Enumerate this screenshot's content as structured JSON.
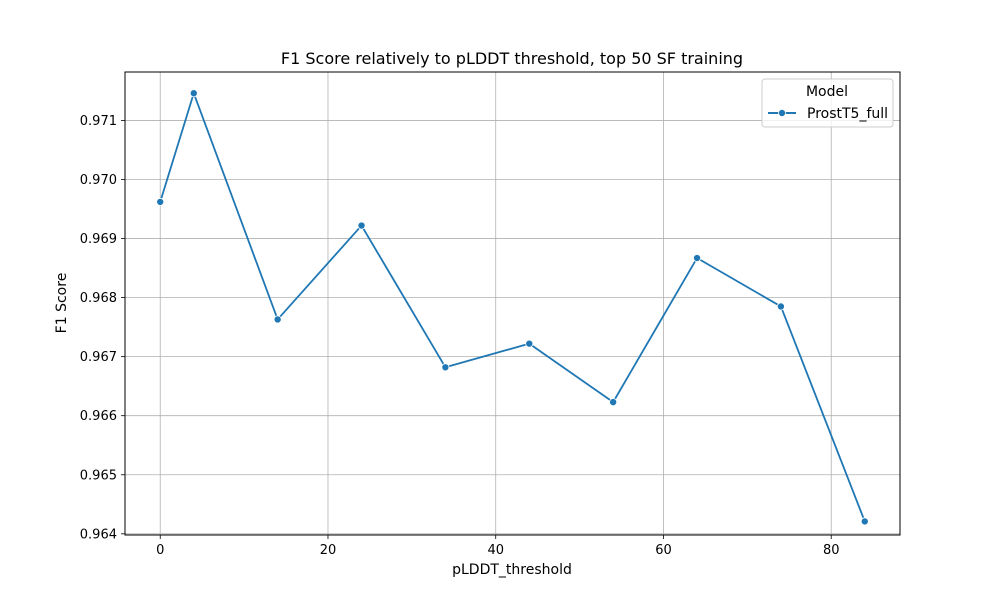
{
  "chart_data": {
    "type": "line",
    "title": "F1 Score relatively to pLDDT threshold, top 50 SF training",
    "xlabel": "pLDDT_threshold",
    "ylabel": "F1 Score",
    "xlim": [
      -4.2,
      88.2
    ],
    "ylim": [
      0.96398,
      0.97182
    ],
    "xticks": [
      0,
      20,
      40,
      60,
      80
    ],
    "xtick_labels": [
      "0",
      "20",
      "40",
      "60",
      "80"
    ],
    "yticks": [
      0.964,
      0.965,
      0.966,
      0.967,
      0.968,
      0.969,
      0.97,
      0.971
    ],
    "ytick_labels": [
      "0.964",
      "0.965",
      "0.966",
      "0.967",
      "0.968",
      "0.969",
      "0.970",
      "0.971"
    ],
    "grid": true,
    "legend": {
      "title": "Model",
      "placement": "top-right",
      "entries": [
        "ProstT5_full"
      ]
    },
    "series": [
      {
        "name": "ProstT5_full",
        "color": "#1f77b4",
        "marker": "circle",
        "x": [
          0,
          4,
          14,
          24,
          34,
          44,
          54,
          64,
          74,
          84
        ],
        "y": [
          0.96962,
          0.97146,
          0.96763,
          0.96922,
          0.96682,
          0.96722,
          0.96623,
          0.96867,
          0.96785,
          0.96421
        ]
      }
    ]
  }
}
